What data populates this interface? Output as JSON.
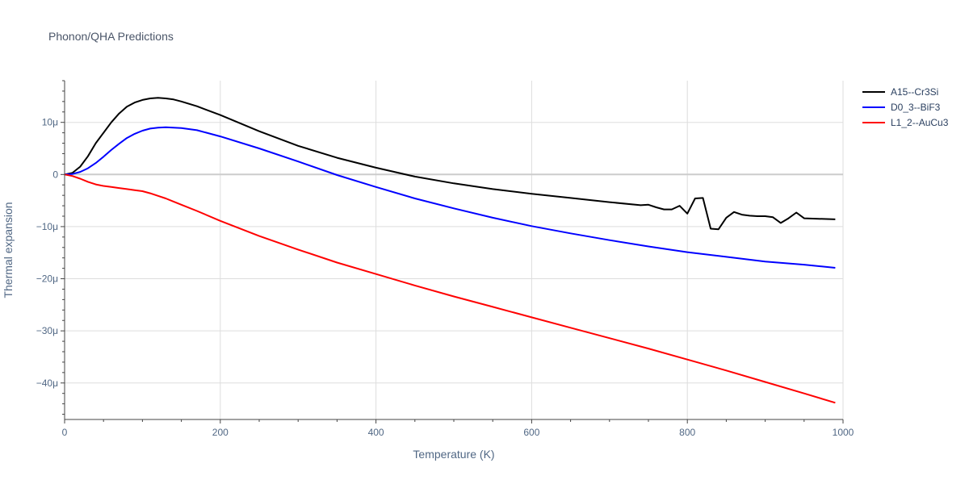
{
  "chart_data": {
    "type": "line",
    "title": "Phonon/QHA Predictions",
    "xlabel": "Temperature (K)",
    "ylabel": "Thermal expansion",
    "xlim": [
      0,
      1000
    ],
    "ylim": [
      -47,
      18
    ],
    "y_unit_scale": "1e-6 (µ)",
    "grid": true,
    "legend_position": "top-right",
    "x_ticks": [
      0,
      200,
      400,
      600,
      800,
      1000
    ],
    "x_tick_labels": [
      "0",
      "200",
      "400",
      "600",
      "800",
      "1000"
    ],
    "y_ticks": [
      10,
      0,
      -10,
      -20,
      -30,
      -40
    ],
    "y_tick_labels": [
      "10μ",
      "0",
      "−10μ",
      "−20μ",
      "−30μ",
      "−40μ"
    ],
    "series": [
      {
        "name": "A15--Cr3Si",
        "color": "#000000",
        "x": [
          0,
          10,
          20,
          30,
          40,
          50,
          60,
          70,
          80,
          90,
          100,
          110,
          120,
          130,
          140,
          150,
          170,
          200,
          250,
          300,
          350,
          400,
          450,
          500,
          550,
          600,
          650,
          700,
          740,
          750,
          760,
          770,
          780,
          790,
          800,
          810,
          820,
          830,
          840,
          850,
          860,
          870,
          880,
          890,
          900,
          910,
          920,
          930,
          940,
          950,
          990
        ],
        "values": [
          0,
          0.3,
          1.5,
          3.5,
          6,
          8,
          10,
          11.7,
          13,
          13.8,
          14.3,
          14.6,
          14.7,
          14.6,
          14.4,
          14,
          13.1,
          11.4,
          8.3,
          5.5,
          3.2,
          1.3,
          -0.4,
          -1.7,
          -2.8,
          -3.7,
          -4.5,
          -5.3,
          -5.9,
          -5.8,
          -6.3,
          -6.7,
          -6.7,
          -6,
          -7.5,
          -4.6,
          -4.5,
          -10.4,
          -10.5,
          -8.3,
          -7.2,
          -7.7,
          -7.9,
          -8,
          -8,
          -8.2,
          -9.3,
          -8.4,
          -7.3,
          -8.4,
          -8.6
        ]
      },
      {
        "name": "D0_3--BiF3",
        "color": "#0000ff",
        "x": [
          0,
          10,
          20,
          30,
          40,
          50,
          60,
          70,
          80,
          90,
          100,
          110,
          120,
          130,
          140,
          150,
          170,
          200,
          250,
          300,
          350,
          400,
          450,
          500,
          550,
          600,
          650,
          700,
          750,
          800,
          850,
          900,
          950,
          990
        ],
        "values": [
          0,
          0.1,
          0.5,
          1.2,
          2.2,
          3.4,
          4.7,
          5.9,
          7,
          7.8,
          8.4,
          8.8,
          9,
          9.05,
          9,
          8.9,
          8.5,
          7.3,
          5,
          2.5,
          -0.1,
          -2.4,
          -4.6,
          -6.5,
          -8.3,
          -9.9,
          -11.3,
          -12.6,
          -13.8,
          -14.9,
          -15.8,
          -16.7,
          -17.3,
          -17.9
        ]
      },
      {
        "name": "L1_2--AuCu3",
        "color": "#ff0000",
        "x": [
          0,
          10,
          20,
          30,
          40,
          50,
          60,
          70,
          80,
          90,
          100,
          110,
          120,
          130,
          140,
          150,
          170,
          200,
          250,
          300,
          350,
          400,
          450,
          500,
          550,
          600,
          650,
          700,
          750,
          800,
          850,
          900,
          950,
          990
        ],
        "values": [
          0,
          -0.3,
          -0.8,
          -1.4,
          -1.9,
          -2.2,
          -2.4,
          -2.6,
          -2.8,
          -3,
          -3.2,
          -3.6,
          -4.1,
          -4.6,
          -5.2,
          -5.8,
          -7,
          -8.9,
          -11.8,
          -14.4,
          -16.9,
          -19.1,
          -21.3,
          -23.4,
          -25.4,
          -27.4,
          -29.4,
          -31.4,
          -33.4,
          -35.5,
          -37.6,
          -39.8,
          -42,
          -43.8
        ]
      }
    ]
  }
}
